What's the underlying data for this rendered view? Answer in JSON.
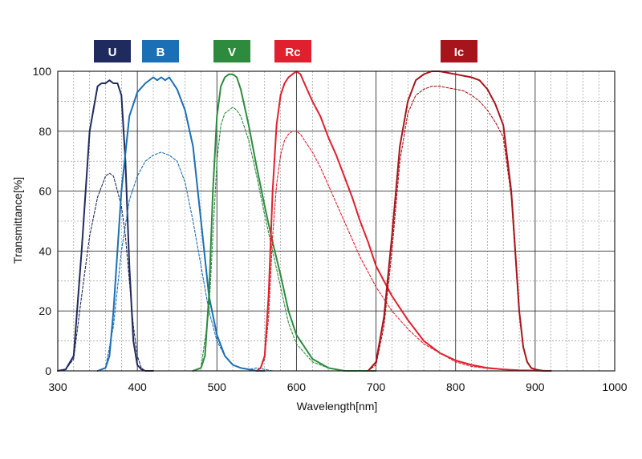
{
  "chart_data": {
    "type": "line",
    "xlabel": "Wavelength[nm]",
    "ylabel": "Transmittance[%]",
    "xlim": [
      300,
      1000
    ],
    "ylim": [
      0,
      100
    ],
    "x_ticks": [
      "300",
      "400",
      "500",
      "600",
      "700",
      "800",
      "900",
      "1000"
    ],
    "y_ticks": [
      "0",
      "20",
      "40",
      "60",
      "80",
      "100"
    ],
    "grid": true,
    "legend": [
      {
        "label": "U",
        "color": "#1f2b5e"
      },
      {
        "label": "B",
        "color": "#1a6fb5"
      },
      {
        "label": "V",
        "color": "#2e8b3e"
      },
      {
        "label": "Rc",
        "color": "#e0202e"
      },
      {
        "label": "Ic",
        "color": "#a8141c"
      }
    ],
    "series": [
      {
        "name": "U",
        "style": "solid",
        "color": "#1f2b5e",
        "x": [
          300,
          310,
          320,
          330,
          340,
          350,
          355,
          360,
          365,
          370,
          375,
          380,
          385,
          390,
          395,
          400,
          405,
          410,
          420
        ],
        "y": [
          0,
          0.5,
          5,
          40,
          80,
          95,
          96,
          96,
          97,
          96,
          96,
          92,
          70,
          35,
          10,
          2,
          0.5,
          0,
          0
        ]
      },
      {
        "name": "U",
        "style": "dashed",
        "color": "#1f2b5e",
        "x": [
          300,
          310,
          320,
          330,
          340,
          350,
          360,
          365,
          370,
          375,
          380,
          385,
          390,
          395,
          400,
          405,
          410,
          420
        ],
        "y": [
          0,
          0.5,
          4,
          25,
          45,
          58,
          65,
          66,
          65,
          60,
          55,
          45,
          30,
          15,
          5,
          1,
          0,
          0
        ]
      },
      {
        "name": "B",
        "style": "solid",
        "color": "#1a6fb5",
        "x": [
          350,
          360,
          365,
          370,
          380,
          390,
          400,
          410,
          420,
          425,
          430,
          435,
          440,
          445,
          450,
          460,
          470,
          480,
          490,
          500,
          510,
          520,
          530,
          540,
          550,
          560
        ],
        "y": [
          0,
          1,
          5,
          20,
          60,
          85,
          93,
          96,
          98,
          97,
          98,
          97,
          98,
          96,
          94,
          87,
          75,
          50,
          25,
          12,
          5,
          2,
          1,
          0.5,
          0,
          0
        ]
      },
      {
        "name": "B",
        "style": "dashed",
        "color": "#1a6fb5",
        "x": [
          350,
          360,
          370,
          380,
          390,
          400,
          410,
          420,
          430,
          440,
          450,
          460,
          470,
          480,
          490,
          500,
          510,
          520,
          530,
          540,
          550,
          560,
          570
        ],
        "y": [
          0,
          1,
          15,
          40,
          57,
          65,
          70,
          72,
          73,
          72,
          70,
          63,
          50,
          35,
          20,
          10,
          5,
          2,
          1,
          0.5,
          1,
          0.5,
          0
        ]
      },
      {
        "name": "V",
        "style": "solid",
        "color": "#2e8b3e",
        "x": [
          470,
          480,
          485,
          490,
          495,
          500,
          505,
          510,
          515,
          520,
          525,
          530,
          540,
          550,
          560,
          570,
          580,
          590,
          600,
          620,
          640,
          650,
          660,
          680,
          700
        ],
        "y": [
          0,
          1,
          5,
          25,
          60,
          85,
          95,
          98,
          99,
          99,
          98,
          94,
          82,
          68,
          55,
          43,
          32,
          20,
          12,
          4,
          1,
          0.5,
          0,
          0,
          0
        ]
      },
      {
        "name": "V",
        "style": "dashed",
        "color": "#2e8b3e",
        "x": [
          470,
          480,
          490,
          495,
          500,
          505,
          510,
          515,
          520,
          525,
          530,
          540,
          550,
          560,
          570,
          580,
          590,
          600,
          620,
          640,
          650,
          660,
          680
        ],
        "y": [
          0,
          1,
          20,
          45,
          70,
          82,
          86,
          87,
          88,
          87,
          85,
          77,
          65,
          52,
          40,
          28,
          16,
          9,
          3,
          1,
          0.5,
          0,
          0
        ]
      },
      {
        "name": "Rc",
        "style": "solid",
        "color": "#e0202e",
        "x": [
          550,
          555,
          560,
          565,
          570,
          575,
          580,
          585,
          590,
          595,
          600,
          605,
          610,
          620,
          630,
          640,
          650,
          660,
          670,
          680,
          690,
          700,
          720,
          740,
          760,
          780,
          800,
          820,
          840,
          860,
          880,
          900,
          920
        ],
        "y": [
          0,
          1,
          5,
          25,
          60,
          82,
          92,
          96,
          98,
          99,
          100,
          99,
          96,
          90,
          85,
          78,
          72,
          65,
          58,
          50,
          43,
          35,
          25,
          17,
          10,
          6,
          3.5,
          2,
          1,
          0.5,
          0.2,
          0.1,
          0
        ]
      },
      {
        "name": "Rc",
        "style": "dashed",
        "color": "#e0202e",
        "x": [
          550,
          555,
          560,
          565,
          570,
          575,
          580,
          585,
          590,
          595,
          600,
          605,
          610,
          620,
          630,
          640,
          650,
          660,
          670,
          680,
          690,
          700,
          720,
          740,
          760,
          780,
          800,
          820,
          840,
          860,
          880,
          900,
          920
        ],
        "y": [
          0,
          1,
          4,
          18,
          45,
          62,
          72,
          77,
          79,
          80,
          80,
          79,
          77,
          73,
          68,
          62,
          56,
          50,
          44,
          38,
          33,
          28,
          20,
          14,
          9,
          6,
          3,
          1.5,
          0.8,
          0.5,
          0.2,
          0.1,
          0
        ]
      },
      {
        "name": "Ic",
        "style": "solid",
        "color": "#a8141c",
        "x": [
          690,
          700,
          710,
          720,
          730,
          740,
          750,
          760,
          770,
          780,
          790,
          800,
          810,
          820,
          830,
          840,
          850,
          860,
          870,
          875,
          880,
          885,
          890,
          895,
          900,
          910,
          920
        ],
        "y": [
          0,
          3,
          18,
          45,
          75,
          90,
          97,
          99,
          100,
          100,
          99.5,
          99,
          98.5,
          98,
          97,
          94,
          89,
          82,
          60,
          40,
          20,
          8,
          3,
          1,
          0.5,
          0,
          0
        ]
      },
      {
        "name": "Ic",
        "style": "dashed",
        "color": "#a8141c",
        "x": [
          690,
          700,
          710,
          720,
          730,
          740,
          750,
          760,
          770,
          780,
          790,
          800,
          810,
          820,
          830,
          840,
          850,
          860,
          870,
          875,
          880,
          885,
          890,
          895,
          900,
          910,
          920
        ],
        "y": [
          0,
          2,
          15,
          40,
          70,
          86,
          92,
          94,
          95,
          95,
          94.5,
          94,
          93.5,
          92,
          90,
          87,
          83,
          78,
          58,
          38,
          19,
          8,
          3,
          1,
          0.5,
          0,
          0
        ]
      }
    ]
  }
}
